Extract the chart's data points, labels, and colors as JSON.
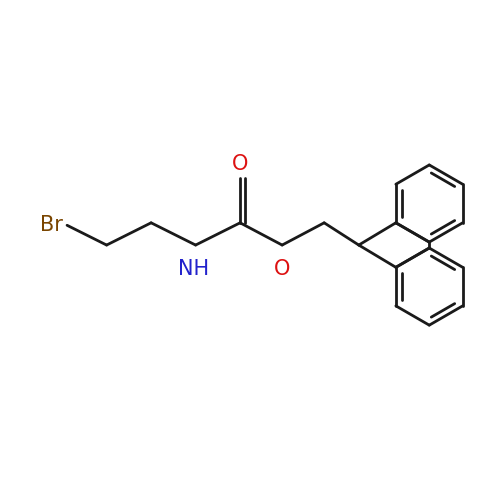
{
  "background_color": "#ffffff",
  "bond_color": "#1a1a1a",
  "br_color": "#7a4500",
  "n_color": "#2222cc",
  "o_color": "#dd1111",
  "line_width": 2.0,
  "figsize": [
    5.0,
    5.0
  ],
  "dpi": 100,
  "xlim": [
    0,
    10
  ],
  "ylim": [
    0,
    10
  ]
}
